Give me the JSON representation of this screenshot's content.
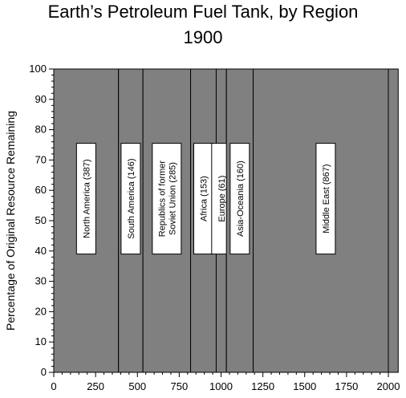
{
  "chart_data": {
    "type": "bar",
    "title": "Earth’s Petroleum Fuel Tank, by Region",
    "subtitle": "1900",
    "xlabel": "",
    "ylabel": "Percentage of Original Resource Remaining",
    "xlim": [
      0,
      2000
    ],
    "ylim": [
      0,
      100
    ],
    "x_ticks": [
      "0",
      "250",
      "500",
      "750",
      "1000",
      "1250",
      "1500",
      "1750",
      "2000"
    ],
    "y_ticks": [
      "0",
      "10",
      "20",
      "30",
      "40",
      "50",
      "60",
      "70",
      "80",
      "90",
      "100"
    ],
    "grid": false,
    "fill_color": "#808080",
    "series": [
      {
        "name": "North America (387)",
        "lines": [
          "North America (387)"
        ],
        "width": 387,
        "remaining": 100
      },
      {
        "name": "South America (146)",
        "lines": [
          "South America (146)"
        ],
        "width": 146,
        "remaining": 100
      },
      {
        "name": "Republics of former Soviet Union (285)",
        "lines": [
          "Republics of former",
          "Soviet Union (285)"
        ],
        "width": 285,
        "remaining": 100
      },
      {
        "name": "Africa (153)",
        "lines": [
          "Africa (153)"
        ],
        "width": 153,
        "remaining": 100
      },
      {
        "name": "Europe (61)",
        "lines": [
          "Europe (61)"
        ],
        "width": 61,
        "remaining": 100
      },
      {
        "name": "Asia-Oceania (160)",
        "lines": [
          "Asia-Oceania (160)"
        ],
        "width": 160,
        "remaining": 100
      },
      {
        "name": "Middle East (867)",
        "lines": [
          "Middle East (867)"
        ],
        "width": 867,
        "remaining": 100
      }
    ]
  }
}
